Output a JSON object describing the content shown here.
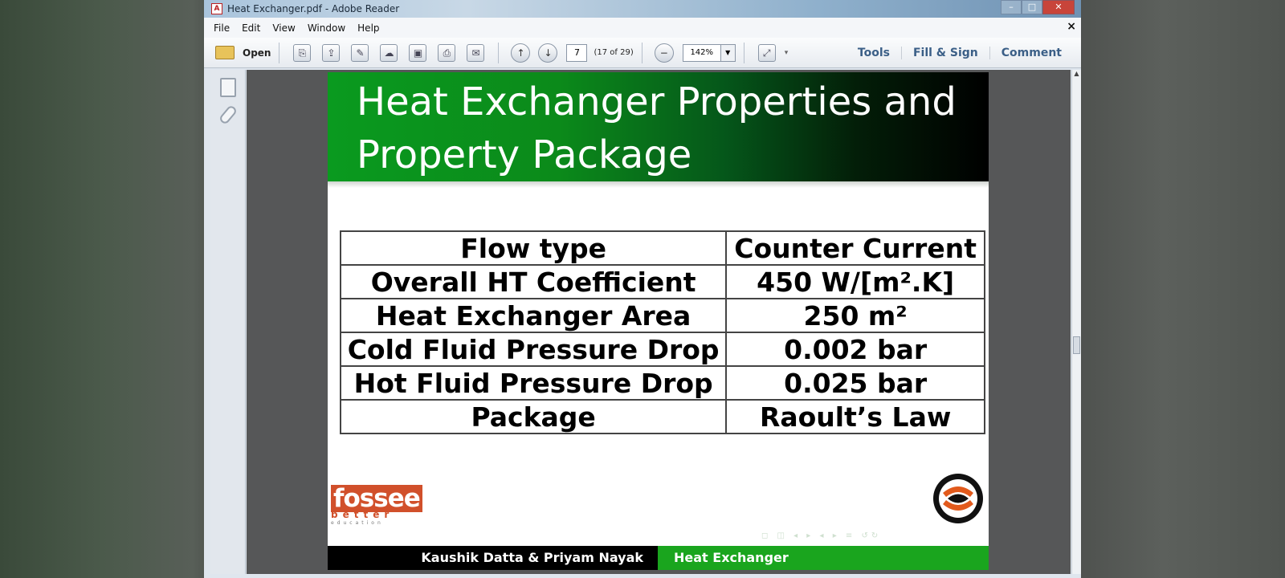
{
  "window": {
    "title": "Heat Exchanger.pdf - Adobe Reader",
    "app_icon": "pdf-icon",
    "controls": [
      "minimize",
      "maximize",
      "close"
    ]
  },
  "menu": {
    "items": [
      "File",
      "Edit",
      "View",
      "Window",
      "Help"
    ],
    "close_glyph": "×"
  },
  "toolbar": {
    "open_label": "Open",
    "page_number": "7",
    "page_count": "(17 of 29)",
    "zoom": "142%",
    "links": [
      "Tools",
      "Fill & Sign",
      "Comment"
    ]
  },
  "slide": {
    "title_line1": "Heat Exchanger Properties and",
    "title_line2": "Property Package",
    "rows": [
      {
        "label": "Flow type",
        "value": "Counter Current"
      },
      {
        "label": "Overall HT Coefficient",
        "value": "450 W/[m².K]"
      },
      {
        "label": "Heat Exchanger Area",
        "value": "250 m²"
      },
      {
        "label": "Cold Fluid Pressure Drop",
        "value": "0.002 bar"
      },
      {
        "label": "Hot Fluid Pressure Drop",
        "value": "0.025 bar"
      },
      {
        "label": "Package",
        "value": "Raoult’s Law"
      }
    ],
    "logo_text": "fossee",
    "logo_sub": "better",
    "logo_sub2": "education",
    "nav_symbols": "◻ ◫ ◂ ▸ ◂ ▸ ≡ ↺↻",
    "footer_authors": "Kaushik Datta & Priyam Nayak",
    "footer_topic": "Heat Exchanger"
  }
}
